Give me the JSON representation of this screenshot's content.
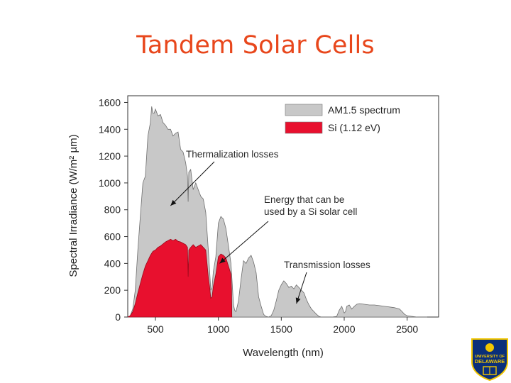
{
  "slide": {
    "title": "Tandem Solar Cells"
  },
  "chart_data": {
    "type": "area",
    "xlabel": "Wavelength (nm)",
    "ylabel": "Spectral Irradiance (W/m² µm)",
    "xlim": [
      280,
      2750
    ],
    "ylim": [
      0,
      1650
    ],
    "x_ticks": [
      500,
      1000,
      1500,
      2000,
      2500
    ],
    "y_ticks": [
      0,
      200,
      400,
      600,
      800,
      1000,
      1200,
      1400,
      1600
    ],
    "grid": false,
    "legend_position": "top-right",
    "series": [
      {
        "name": "AM1.5 spectrum",
        "color": "#c8c8c8",
        "x": [
          280,
          300,
          320,
          340,
          360,
          380,
          400,
          420,
          440,
          460,
          470,
          480,
          490,
          500,
          520,
          540,
          560,
          580,
          600,
          620,
          640,
          660,
          680,
          700,
          720,
          740,
          755,
          760,
          765,
          780,
          800,
          820,
          840,
          860,
          880,
          900,
          920,
          930,
          940,
          950,
          960,
          980,
          1000,
          1020,
          1040,
          1060,
          1080,
          1100,
          1110,
          1120,
          1130,
          1140,
          1150,
          1160,
          1180,
          1200,
          1220,
          1240,
          1260,
          1280,
          1300,
          1320,
          1340,
          1350,
          1360,
          1370,
          1380,
          1400,
          1420,
          1440,
          1460,
          1480,
          1500,
          1520,
          1540,
          1560,
          1580,
          1600,
          1620,
          1640,
          1660,
          1680,
          1700,
          1720,
          1740,
          1760,
          1780,
          1800,
          1820,
          1860,
          1900,
          1940,
          1960,
          1980,
          2000,
          2010,
          2020,
          2040,
          2060,
          2080,
          2100,
          2120,
          2160,
          2200,
          2240,
          2280,
          2320,
          2360,
          2400,
          2440,
          2460,
          2480,
          2500,
          2540,
          2580,
          2620,
          2660
        ],
        "values": [
          0,
          10,
          60,
          200,
          500,
          750,
          1000,
          1050,
          1350,
          1450,
          1570,
          1520,
          1520,
          1550,
          1500,
          1510,
          1450,
          1430,
          1400,
          1400,
          1350,
          1370,
          1380,
          1250,
          1230,
          1150,
          1050,
          860,
          1080,
          1100,
          950,
          1000,
          950,
          900,
          880,
          780,
          500,
          350,
          200,
          220,
          340,
          450,
          700,
          750,
          730,
          660,
          530,
          400,
          250,
          90,
          50,
          40,
          80,
          120,
          280,
          420,
          400,
          440,
          460,
          410,
          330,
          150,
          80,
          50,
          20,
          10,
          5,
          0,
          10,
          50,
          120,
          200,
          240,
          270,
          250,
          220,
          230,
          210,
          240,
          220,
          200,
          180,
          130,
          90,
          60,
          40,
          20,
          5,
          0,
          0,
          0,
          5,
          50,
          80,
          30,
          40,
          80,
          90,
          60,
          80,
          95,
          100,
          95,
          90,
          90,
          85,
          80,
          75,
          70,
          60,
          40,
          20,
          10,
          5,
          0,
          0,
          0
        ]
      },
      {
        "name": "Si (1.12 eV)",
        "color": "#e8102e",
        "x": [
          280,
          300,
          320,
          340,
          360,
          380,
          400,
          420,
          440,
          460,
          480,
          500,
          520,
          540,
          560,
          580,
          600,
          620,
          640,
          660,
          680,
          700,
          720,
          740,
          755,
          760,
          765,
          780,
          800,
          820,
          840,
          860,
          880,
          900,
          920,
          930,
          940,
          950,
          960,
          980,
          1000,
          1020,
          1040,
          1060,
          1080,
          1100,
          1105,
          1107
        ],
        "values": [
          0,
          10,
          40,
          100,
          180,
          250,
          320,
          380,
          420,
          460,
          490,
          500,
          520,
          530,
          545,
          560,
          570,
          580,
          570,
          580,
          565,
          560,
          550,
          540,
          520,
          300,
          500,
          520,
          540,
          520,
          530,
          540,
          520,
          500,
          300,
          230,
          140,
          150,
          230,
          320,
          450,
          470,
          460,
          440,
          380,
          320,
          200,
          0
        ]
      }
    ],
    "annotations": [
      {
        "text": "Thermalization losses",
        "arrow_to": [
          620,
          830
        ]
      },
      {
        "text": "Energy that can be",
        "arrow_to": [
          1010,
          400
        ]
      },
      {
        "text": "used by a Si solar cell",
        "arrow_to": null
      },
      {
        "text": "Transmission losses",
        "arrow_to": [
          1620,
          100
        ]
      }
    ]
  },
  "logo": {
    "line1": "UNIVERSITY OF",
    "line2": "DELAWARE"
  }
}
